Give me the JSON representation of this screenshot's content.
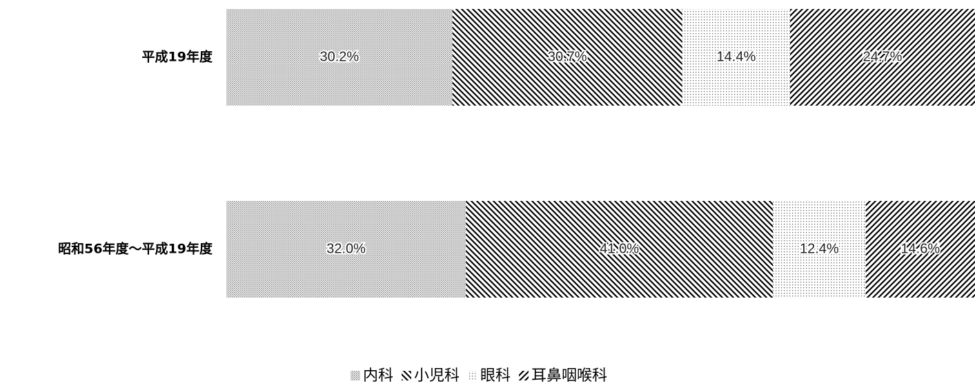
{
  "chart_data": {
    "type": "stacked_barh",
    "categories": [
      "平成19年度",
      "昭和56年度～平成19年度"
    ],
    "series": [
      {
        "name": "内科",
        "color": "#888888",
        "pattern": "dots-fine",
        "values": [
          30.2,
          32.0
        ],
        "value_labels": [
          "30.2%",
          "32.0%"
        ]
      },
      {
        "name": "小児科",
        "color": "#000000",
        "pattern": "hatch-back",
        "values": [
          30.7,
          41.0
        ],
        "value_labels": [
          "30.7%",
          "41.0%"
        ]
      },
      {
        "name": "眼科",
        "color": "#666666",
        "pattern": "dots-sparse",
        "values": [
          14.4,
          12.4
        ],
        "value_labels": [
          "14.4%",
          "12.4%"
        ]
      },
      {
        "name": "耳鼻咽喉科",
        "color": "#000000",
        "pattern": "hatch-fwd",
        "values": [
          24.7,
          14.6
        ],
        "value_labels": [
          "24.7%",
          "14.6%"
        ]
      }
    ],
    "xlim": [
      0,
      100
    ],
    "legend": "bottom"
  }
}
